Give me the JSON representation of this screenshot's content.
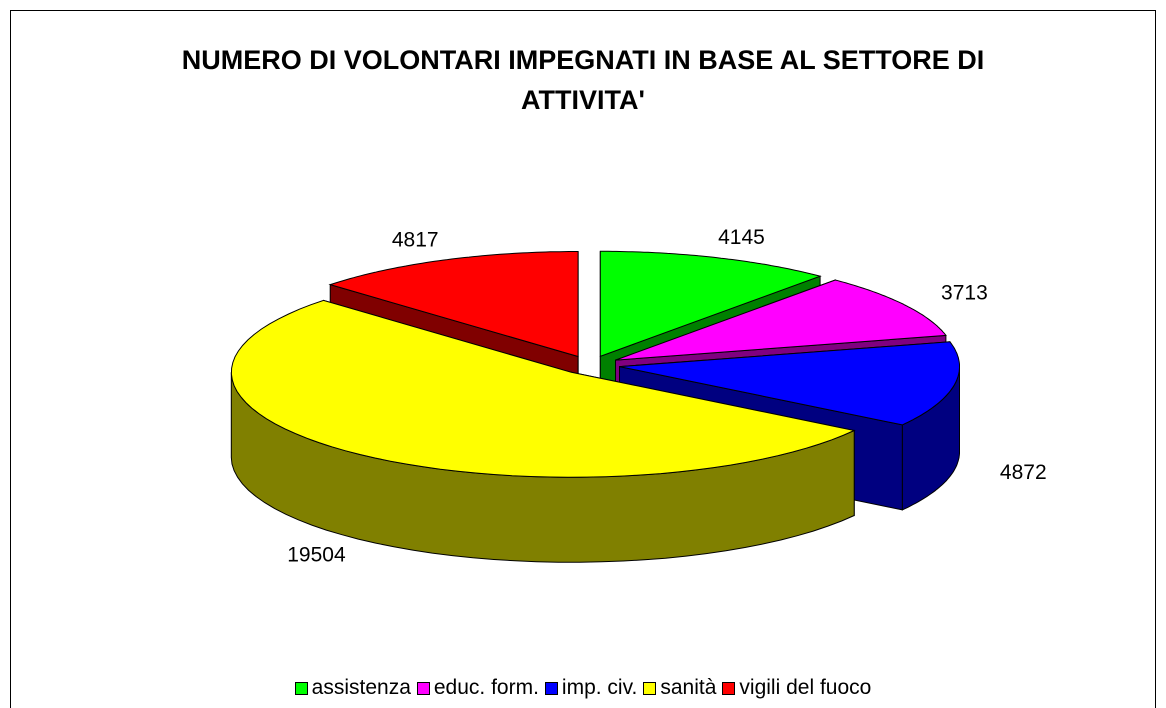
{
  "chart_data": {
    "type": "pie",
    "title": "NUMERO DI VOLONTARI IMPEGNATI IN BASE AL SETTORE DI ATTIVITA'",
    "categories": [
      "assistenza",
      "educ. form.",
      "imp. civ.",
      "sanità",
      "vigili del fuoco"
    ],
    "values": [
      4145,
      3713,
      4872,
      19504,
      4817
    ],
    "colors": [
      "#00ff00",
      "#ff00ff",
      "#0000ff",
      "#ffff00",
      "#ff0000"
    ],
    "side_colors": [
      "#008000",
      "#800080",
      "#000080",
      "#808000",
      "#800000"
    ],
    "legend": "bottom"
  }
}
